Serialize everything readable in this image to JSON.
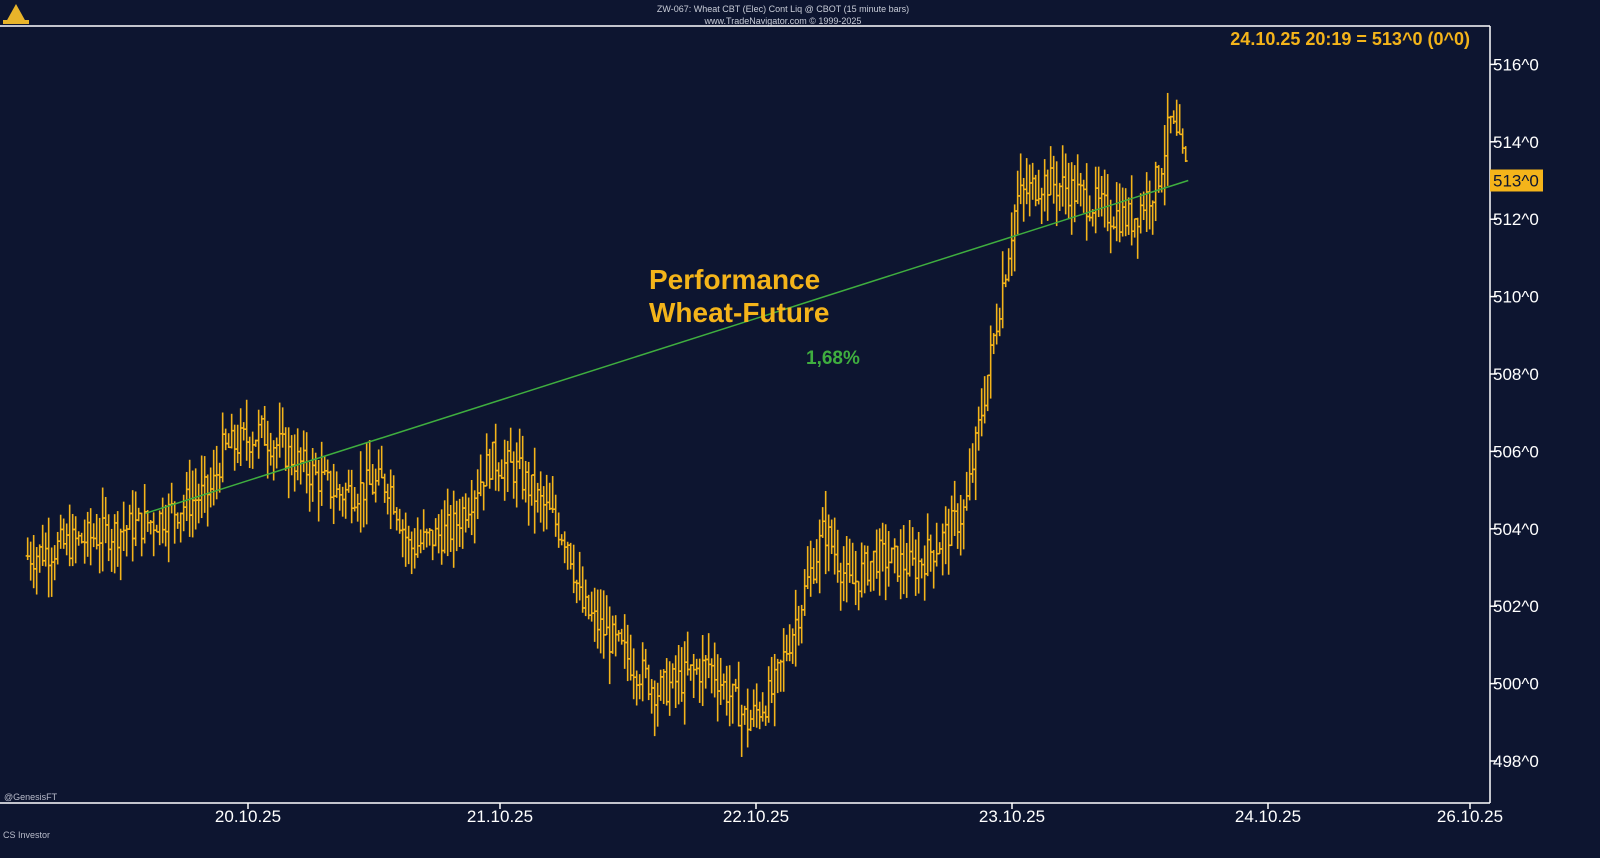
{
  "header": {
    "line1": "ZW-067:  Wheat CBT (Elec) Cont Liq @ CBOT  (15 minute bars)",
    "line2": "www.TradeNavigator.com © 1999-2025"
  },
  "quote_readout": "24.10.25 20:19 = 513^0 (0^0)",
  "last_price_label": "513^0",
  "annotation": {
    "title_line1": "Performance",
    "title_line2": "Wheat-Future",
    "performance": "1,68%"
  },
  "watermark": "@GenesisFT",
  "footer_credit": "CS Investor",
  "colors": {
    "background": "#0d1530",
    "bars": "#f4b41a",
    "trendline": "#3fae3f",
    "axis": "#ffffff"
  },
  "chart_data": {
    "type": "ohlc",
    "title": "ZW-067:  Wheat CBT (Elec) Cont Liq @ CBOT  (15 minute bars)",
    "x_tick_labels": [
      "20.10.25",
      "21.10.25",
      "22.10.25",
      "23.10.25",
      "24.10.25",
      "26.10.25"
    ],
    "y_tick_labels": [
      "498^0",
      "500^0",
      "502^0",
      "504^0",
      "506^0",
      "508^0",
      "510^0",
      "512^0",
      "514^0",
      "516^0"
    ],
    "ylim": [
      497,
      517
    ],
    "series": [
      {
        "x": [
          0.14,
          0.4,
          0.63,
          0.86,
          0.9,
          1.05,
          1.35,
          1.55,
          1.63,
          1.8,
          1.95,
          2.05,
          2.25,
          2.3,
          2.6,
          2.8,
          2.95,
          3.05,
          3.25,
          3.35,
          3.45,
          3.6,
          3.72,
          3.8,
          4.0,
          4.1,
          4.2,
          4.25,
          4.35,
          4.45,
          4.55,
          4.6,
          4.65,
          4.67
        ],
        "close": [
          503.3,
          503.8,
          504.2,
          505.0,
          506.0,
          506.5,
          504.9,
          505.2,
          503.5,
          504.0,
          505.8,
          505.5,
          503.7,
          502.0,
          499.8,
          500.5,
          499.0,
          499.8,
          504.0,
          502.5,
          503.3,
          503.0,
          503.8,
          504.5,
          512.5,
          513.0,
          512.8,
          512.6,
          512.2,
          512.0,
          513.0,
          514.5,
          513.5,
          513.0
        ]
      }
    ],
    "trendline": {
      "start": {
        "x": 0.6,
        "y": 504.4
      },
      "end": {
        "x": 4.67,
        "y": 513.0
      },
      "label": "1,68%"
    }
  }
}
